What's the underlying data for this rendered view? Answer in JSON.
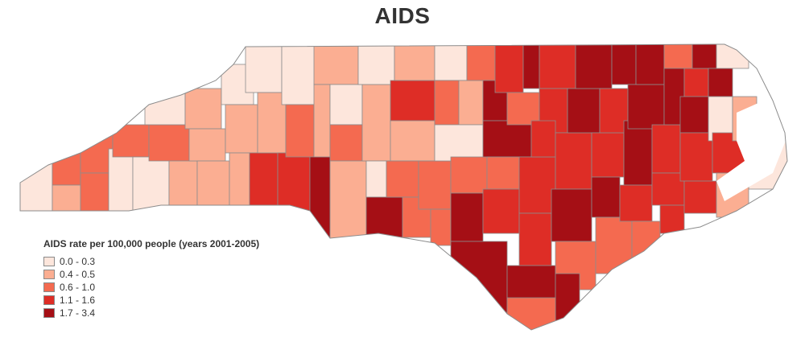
{
  "title": "AIDS",
  "legend": {
    "title": "AIDS rate per 100,000 people (years 2001-2005)",
    "items": [
      {
        "label": "0.0 - 0.3",
        "color": "#fde6dc"
      },
      {
        "label": "0.4 - 0.5",
        "color": "#fbae92"
      },
      {
        "label": "0.6 - 1.0",
        "color": "#f46a50"
      },
      {
        "label": "1.1 - 1.6",
        "color": "#de2d26"
      },
      {
        "label": "1.7 - 3.4",
        "color": "#a50f15"
      }
    ]
  },
  "map": {
    "region": "North Carolina counties",
    "border_color": "#8c8c8c"
  }
}
